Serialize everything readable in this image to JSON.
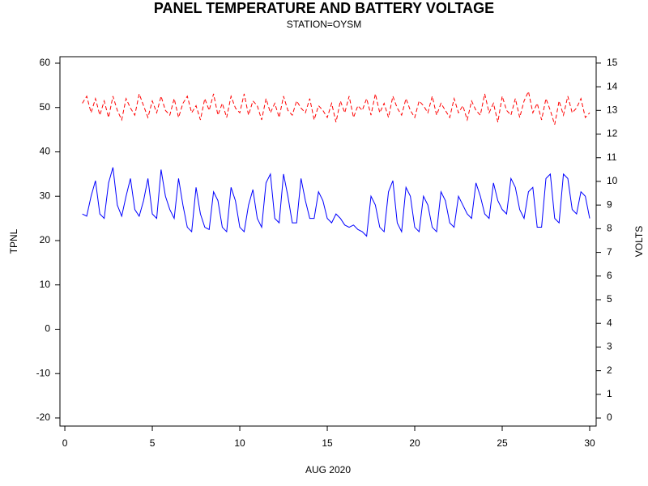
{
  "chart_data": {
    "type": "line",
    "title": "PANEL TEMPERATURE AND BATTERY VOLTAGE",
    "subtitle": "STATION=OYSM",
    "xlabel": "AUG 2020",
    "ylabel": "TPNL",
    "y2label": "VOLTS",
    "xlim": [
      -0.28,
      30.37
    ],
    "xticks": [
      0,
      5,
      10,
      15,
      20,
      25,
      30
    ],
    "ylim": [
      -21.83,
      61.46
    ],
    "yticks": [
      -20,
      -10,
      0,
      10,
      20,
      30,
      40,
      50,
      60
    ],
    "y2lim": [
      -0.34,
      15.27
    ],
    "y2ticks": [
      0,
      1,
      2,
      3,
      4,
      5,
      6,
      7,
      8,
      9,
      10,
      11,
      12,
      13,
      14,
      15
    ],
    "x": [
      1,
      1.25,
      1.5,
      1.75,
      2,
      2.25,
      2.5,
      2.75,
      3,
      3.25,
      3.5,
      3.75,
      4,
      4.25,
      4.5,
      4.75,
      5,
      5.25,
      5.5,
      5.75,
      6,
      6.25,
      6.5,
      6.75,
      7,
      7.25,
      7.5,
      7.75,
      8,
      8.25,
      8.5,
      8.75,
      9,
      9.25,
      9.5,
      9.75,
      10,
      10.25,
      10.5,
      10.75,
      11,
      11.25,
      11.5,
      11.75,
      12,
      12.25,
      12.5,
      12.75,
      13,
      13.25,
      13.5,
      13.75,
      14,
      14.25,
      14.5,
      14.75,
      15,
      15.25,
      15.5,
      15.75,
      16,
      16.25,
      16.5,
      16.75,
      17,
      17.25,
      17.5,
      17.75,
      18,
      18.25,
      18.5,
      18.75,
      19,
      19.25,
      19.5,
      19.75,
      20,
      20.25,
      20.5,
      20.75,
      21,
      21.25,
      21.5,
      21.75,
      22,
      22.25,
      22.5,
      22.75,
      23,
      23.25,
      23.5,
      23.75,
      24,
      24.25,
      24.5,
      24.75,
      25,
      25.25,
      25.5,
      25.75,
      26,
      26.25,
      26.5,
      26.75,
      27,
      27.25,
      27.5,
      27.75,
      28,
      28.25,
      28.5,
      28.75,
      29,
      29.25,
      29.5,
      29.75,
      30
    ],
    "series": [
      {
        "color": "#0000ff",
        "dashed": false,
        "values": [
          26,
          25.5,
          30,
          33.5,
          26,
          25,
          33,
          36.5,
          28,
          25.5,
          30,
          34,
          27,
          25.5,
          29,
          34,
          26,
          25,
          36,
          30,
          27,
          25,
          34,
          28,
          23,
          22,
          32,
          26,
          23,
          22.5,
          31,
          29,
          23,
          22,
          32,
          29,
          23,
          22,
          28,
          31.5,
          25,
          23,
          33,
          35,
          25,
          24,
          35,
          30,
          24,
          24,
          34,
          29,
          25,
          25,
          31,
          29,
          25,
          24,
          26,
          25,
          23.5,
          23,
          23.5,
          22.5,
          22,
          21,
          30,
          28,
          23,
          22,
          31,
          33.5,
          24,
          22,
          32,
          30,
          23,
          22,
          30,
          28,
          23,
          22,
          31,
          29,
          24,
          23,
          30,
          28,
          26,
          25,
          33,
          30,
          26,
          25,
          33,
          29,
          27,
          26,
          34,
          32,
          27,
          25,
          31,
          32,
          23,
          23,
          34,
          35,
          25,
          24,
          35,
          34,
          27,
          26,
          31,
          30,
          25
        ]
      },
      {
        "color": "#ff0000",
        "dashed": true,
        "axis": "y2",
        "values": [
          13.3,
          13.6,
          12.9,
          13.5,
          12.8,
          13.4,
          12.7,
          13.6,
          13.0,
          12.6,
          13.5,
          13.1,
          12.8,
          13.7,
          13.2,
          12.7,
          13.4,
          12.9,
          13.6,
          13.0,
          12.8,
          13.5,
          12.7,
          13.3,
          13.6,
          12.9,
          13.2,
          12.6,
          13.5,
          13.0,
          13.7,
          12.8,
          13.3,
          12.7,
          13.6,
          13.1,
          12.9,
          13.7,
          12.8,
          13.4,
          13.2,
          12.6,
          13.5,
          12.9,
          13.3,
          12.7,
          13.6,
          13.0,
          12.8,
          13.4,
          13.1,
          12.9,
          13.5,
          12.6,
          13.2,
          13.0,
          12.7,
          13.3,
          12.5,
          13.4,
          12.9,
          13.6,
          12.7,
          13.2,
          13.0,
          13.5,
          12.8,
          13.7,
          12.9,
          13.3,
          12.7,
          13.6,
          13.1,
          12.8,
          13.5,
          13.0,
          12.7,
          13.4,
          13.2,
          12.9,
          13.6,
          12.8,
          13.3,
          13.0,
          12.7,
          13.5,
          12.9,
          13.2,
          12.6,
          13.4,
          13.0,
          12.8,
          13.7,
          12.9,
          13.3,
          12.5,
          13.6,
          13.0,
          12.8,
          13.5,
          12.7,
          13.4,
          13.8,
          12.9,
          13.3,
          12.6,
          13.5,
          13.0,
          12.4,
          13.4,
          12.8,
          13.6,
          12.9,
          13.1,
          13.5,
          12.7,
          12.9
        ]
      }
    ]
  }
}
